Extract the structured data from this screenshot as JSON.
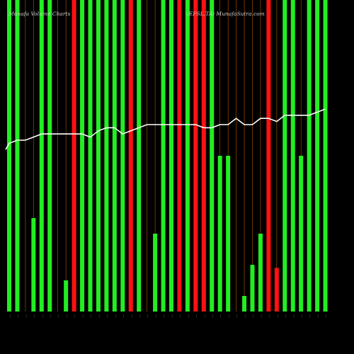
{
  "title_left": "Munafa Volume Charts",
  "title_right": "(EFSL.TA) MunafaSutra.com",
  "colors": {
    "background": "#000000",
    "up": "#22ee22",
    "down": "#ff1111",
    "separator": "#b35900",
    "average": "#ffffff"
  },
  "chart_data": {
    "type": "bar",
    "title": "",
    "xlabel": "",
    "ylabel": "",
    "ylim": [
      0,
      100
    ],
    "categories": [
      "…",
      "…",
      "…",
      "…",
      "…",
      "…",
      "…",
      "…",
      "…",
      "…",
      "…",
      "…",
      "…",
      "…",
      "…",
      "…",
      "…",
      "…",
      "…",
      "…",
      "…",
      "…",
      "…",
      "…",
      "…",
      "…",
      "…",
      "…",
      "…",
      "…",
      "…",
      "…",
      "…",
      "…",
      "…",
      "…",
      "…",
      "…",
      "…",
      "…"
    ],
    "series": [
      {
        "name": "",
        "values": [
          100,
          100,
          0,
          30,
          100,
          100,
          0,
          10,
          100,
          100,
          100,
          100,
          100,
          100,
          100,
          100,
          100,
          0,
          25,
          100,
          100,
          100,
          100,
          100,
          100,
          100,
          50,
          50,
          0,
          5,
          15,
          25,
          100,
          14,
          100,
          100,
          50,
          100,
          100,
          100
        ],
        "colors": [
          "up",
          "up",
          "none",
          "up",
          "up",
          "up",
          "none",
          "up",
          "down",
          "up",
          "up",
          "up",
          "up",
          "up",
          "up",
          "down",
          "up",
          "none",
          "up",
          "up",
          "up",
          "down",
          "up",
          "down",
          "down",
          "up",
          "up",
          "up",
          "none",
          "up",
          "up",
          "up",
          "down",
          "down",
          "up",
          "up",
          "up",
          "up",
          "up",
          "up"
        ],
        "average": [
          54,
          55,
          55,
          56,
          57,
          57,
          57,
          57,
          57,
          57,
          56,
          58,
          59,
          59,
          57,
          58,
          59,
          60,
          60,
          60,
          60,
          60,
          60,
          60,
          59,
          59,
          60,
          60,
          62,
          60,
          60,
          62,
          62,
          61,
          63,
          63,
          63,
          63,
          64,
          65
        ]
      }
    ]
  }
}
